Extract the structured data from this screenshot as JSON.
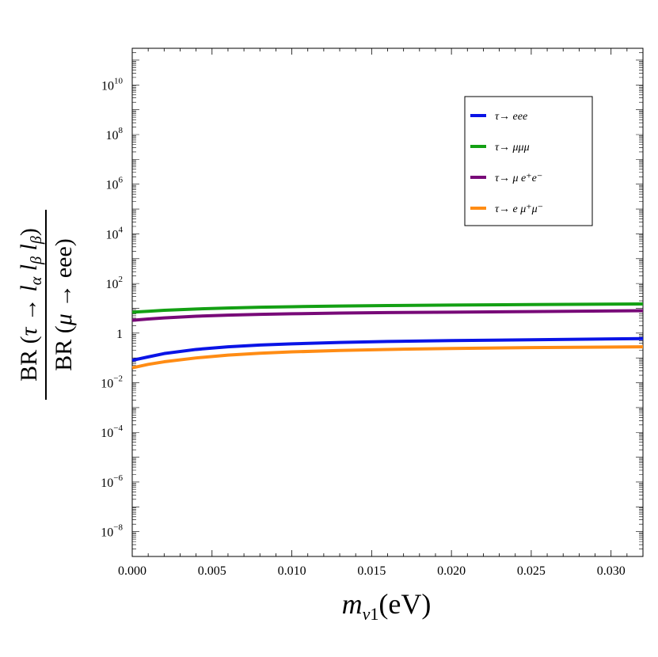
{
  "chart_data": {
    "type": "line",
    "title": "",
    "xlabel": "m_ν1(eV)",
    "ylabel": "BR (τ → l_α l_β l_β) / BR (μ → eee)",
    "xlim": [
      0,
      0.032
    ],
    "ylim": [
      1e-09,
      300000000000.0
    ],
    "yscale": "log",
    "grid": false,
    "legend_position": "top-right",
    "x_ticks": [
      "0.000",
      "0.005",
      "0.010",
      "0.015",
      "0.020",
      "0.025",
      "0.030"
    ],
    "y_ticks": [
      {
        "mantissa": "10",
        "exp": "10",
        "value": 10000000000.0
      },
      {
        "mantissa": "10",
        "exp": "8",
        "value": 100000000.0
      },
      {
        "mantissa": "10",
        "exp": "6",
        "value": 1000000.0
      },
      {
        "mantissa": "10",
        "exp": "4",
        "value": 10000.0
      },
      {
        "mantissa": "10",
        "exp": "2",
        "value": 100.0
      },
      {
        "mantissa": "1",
        "exp": "",
        "value": 1
      },
      {
        "mantissa": "10",
        "exp": "−2",
        "value": 0.01
      },
      {
        "mantissa": "10",
        "exp": "−4",
        "value": 0.0001
      },
      {
        "mantissa": "10",
        "exp": "−6",
        "value": 1e-06
      },
      {
        "mantissa": "10",
        "exp": "−8",
        "value": 1e-08
      }
    ],
    "x": [
      0.0,
      0.001,
      0.002,
      0.004,
      0.006,
      0.008,
      0.01,
      0.013,
      0.016,
      0.02,
      0.025,
      0.032
    ],
    "series": [
      {
        "name": "τ→ eee",
        "color": "#0a14e6",
        "values": [
          0.08,
          0.11,
          0.15,
          0.22,
          0.28,
          0.33,
          0.37,
          0.42,
          0.46,
          0.5,
          0.54,
          0.6
        ]
      },
      {
        "name": "τ→ μμμ",
        "color": "#14a014",
        "values": [
          7.0,
          7.6,
          8.3,
          9.4,
          10.3,
          11.0,
          11.6,
          12.3,
          12.9,
          13.5,
          14.1,
          15.0
        ]
      },
      {
        "name": "τ→ μ e⁺e⁻",
        "color": "#780a78",
        "values": [
          3.3,
          3.7,
          4.1,
          4.8,
          5.3,
          5.7,
          6.0,
          6.4,
          6.7,
          7.0,
          7.4,
          8.0
        ]
      },
      {
        "name": "τ→ e μ⁺μ⁻",
        "color": "#ff8c14",
        "values": [
          0.04,
          0.055,
          0.07,
          0.1,
          0.13,
          0.155,
          0.175,
          0.2,
          0.22,
          0.24,
          0.26,
          0.28
        ]
      }
    ]
  }
}
